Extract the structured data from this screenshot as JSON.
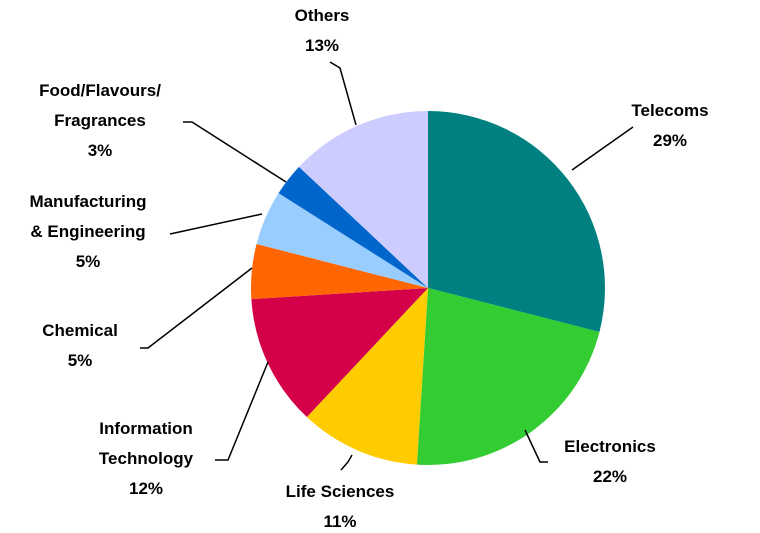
{
  "chart_data": {
    "type": "pie",
    "categories": [
      "Telecoms",
      "Electronics",
      "Life Sciences",
      "Information\nTechnology",
      "Chemical",
      "Manufacturing\n& Engineering",
      "Food/Flavours/\nFragrances",
      "Others"
    ],
    "values": [
      29,
      22,
      11,
      12,
      5,
      5,
      3,
      13
    ],
    "value_labels": [
      "29%",
      "22%",
      "11%",
      "12%",
      "5%",
      "5%",
      "3%",
      "13%"
    ],
    "colors": [
      "#008080",
      "#33cc33",
      "#ffcc00",
      "#d4004a",
      "#ff6600",
      "#99ccff",
      "#0066cc",
      "#ccccff"
    ]
  }
}
